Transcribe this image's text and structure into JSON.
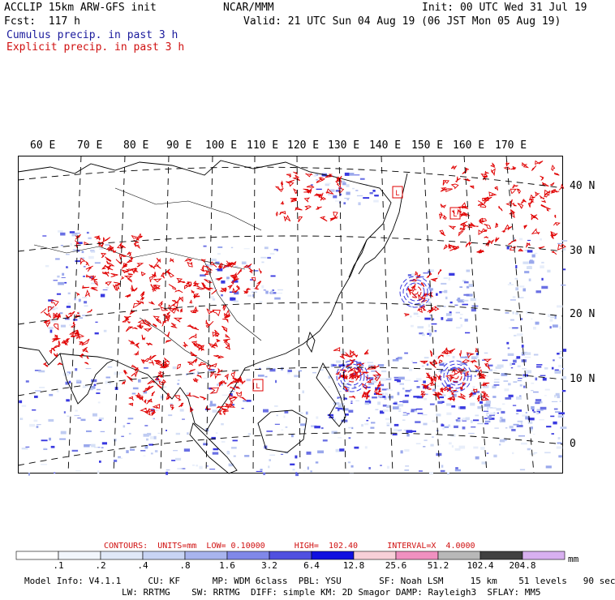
{
  "header": {
    "model_title": "ACCLIP 15km ARW-GFS init",
    "org": "NCAR/MMM",
    "init": "Init: 00 UTC Wed 31 Jul 19",
    "fcst": "Fcst:  117 h",
    "valid": "Valid: 21 UTC Sun 04 Aug 19 (06 JST Mon 05 Aug 19)",
    "legend_cumulus": "Cumulus precip. in past 3 h",
    "legend_explicit": "Explicit precip. in past 3 h",
    "cumulus_color": "#1a1a9c",
    "explicit_color": "#d01010"
  },
  "map": {
    "lon_labels": [
      "60 E",
      "70 E",
      "80 E",
      "90 E",
      "100 E",
      "110 E",
      "120 E",
      "130 E",
      "140 E",
      "150 E",
      "160 E",
      "170 E"
    ],
    "lat_labels": [
      "40 N",
      "30 N",
      "20 N",
      "10 N",
      "0"
    ],
    "low_markers": [
      "L",
      "L",
      "L"
    ],
    "explicit_precip_color": "#e00000",
    "cumulus_precip_color": "#3a3ae0"
  },
  "contour_info": {
    "text": "CONTOURS:  UNITS=mm  LOW= 0.10000      HIGH=  102.40      INTERVAL=X  4.0000"
  },
  "colorbar": {
    "labels": [
      ".1",
      ".2",
      ".4",
      ".8",
      "1.6",
      "3.2",
      "6.4",
      "12.8",
      "25.6",
      "51.2",
      "102.4",
      "204.8"
    ],
    "colors": [
      "#ffffff",
      "#f2f6fc",
      "#e0e8f8",
      "#c8d4f4",
      "#a8b4ee",
      "#8088e8",
      "#5050e0",
      "#1010e0",
      "#f8d0d8",
      "#f090c0",
      "#b8b8b8",
      "#404040",
      "#d8b0f0"
    ],
    "units": "mm"
  },
  "model_info": {
    "line1": "Model Info: V4.1.1     CU: KF      MP: WDM 6class  PBL: YSU       SF: Noah LSM     15 km    51 levels   90 sec",
    "line2": "LW: RRTMG    SW: RRTMG  DIFF: simple KM: 2D Smagor DAMP: Rayleigh3  SFLAY: MM5"
  }
}
